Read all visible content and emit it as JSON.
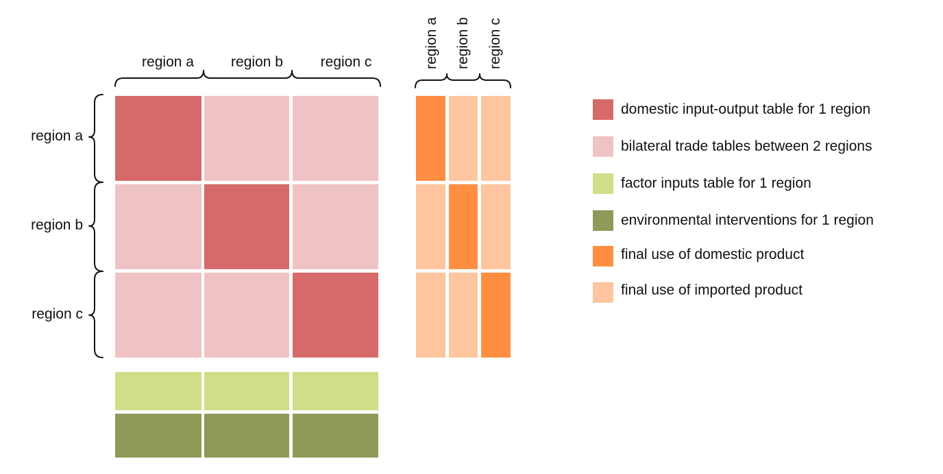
{
  "colors": {
    "domestic_io": "#D66A6A",
    "bilateral_trade": "#EFC3C5",
    "factor_inputs": "#D0DE88",
    "environmental": "#8D9A58",
    "final_domestic": "#FF8E42",
    "final_imported": "#FEC59F"
  },
  "regions": [
    "region a",
    "region b",
    "region c"
  ],
  "legend": [
    {
      "label": "domestic input-output table for 1 region",
      "color": "#D66A6A"
    },
    {
      "label": "bilateral trade tables between 2 regions",
      "color": "#EFC3C5"
    },
    {
      "label": "factor inputs table for 1  region",
      "color": "#D0DE88"
    },
    {
      "label": "environmental interventions for 1  region",
      "color": "#8D9A58"
    },
    {
      "label": "final use of domestic product",
      "color": "#FF8E42"
    },
    {
      "label": "final use of imported product",
      "color": "#FEC59F"
    }
  ]
}
